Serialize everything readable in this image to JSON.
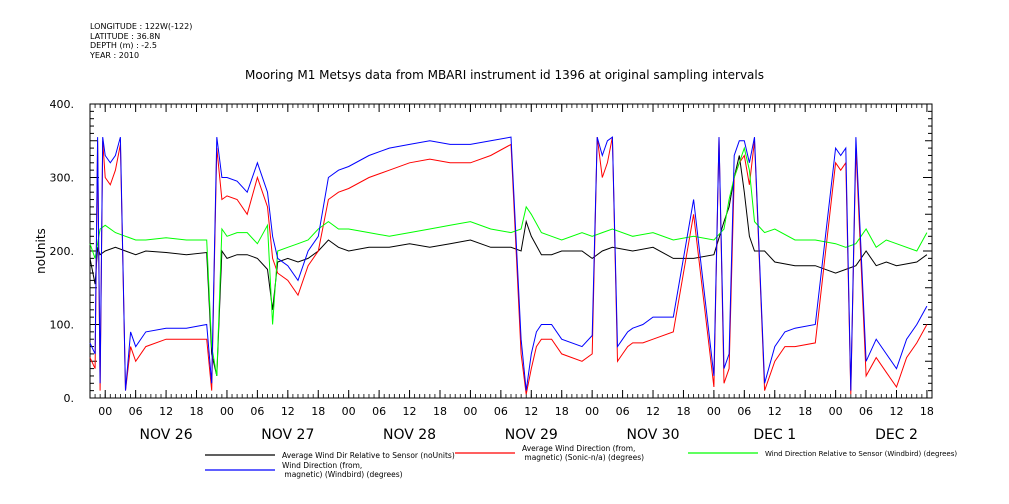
{
  "meta": {
    "longitude": "LONGITUDE : 122W(-122)",
    "latitude": "LATITUDE : 36.8N",
    "depth": "DEPTH (m) : -2.5",
    "year": "YEAR : 2010"
  },
  "chart_data": {
    "type": "line",
    "title": "Mooring M1 Metsys data from MBARI instrument id 1396 at original sampling intervals",
    "ylabel": "noUnits",
    "xlabel": "",
    "ylim": [
      0,
      400
    ],
    "xlim": [
      -3,
      163
    ],
    "y_ticks": [
      "0.",
      "100.",
      "200.",
      "300.",
      "400."
    ],
    "x_tick_hours": [
      0,
      6,
      12,
      18,
      24,
      30,
      36,
      42,
      48,
      54,
      60,
      66,
      72,
      78,
      84,
      90,
      96,
      102,
      108,
      114,
      120,
      126,
      132,
      138,
      144,
      150,
      156,
      162
    ],
    "x_tick_labels": [
      "00",
      "06",
      "12",
      "18",
      "00",
      "06",
      "12",
      "18",
      "00",
      "06",
      "12",
      "18",
      "00",
      "06",
      "12",
      "18",
      "00",
      "06",
      "12",
      "18",
      "00",
      "06",
      "12",
      "18",
      "00",
      "06",
      "12",
      "18"
    ],
    "day_labels": [
      {
        "hour": 12,
        "label": "NOV 26"
      },
      {
        "hour": 36,
        "label": "NOV 27"
      },
      {
        "hour": 60,
        "label": "NOV 28"
      },
      {
        "hour": 84,
        "label": "NOV 29"
      },
      {
        "hour": 108,
        "label": "NOV 30"
      },
      {
        "hour": 132,
        "label": "DEC  1"
      },
      {
        "hour": 156,
        "label": "DEC  2"
      }
    ],
    "grid": false,
    "legend_position": "bottom",
    "series": [
      {
        "name": "Average Wind Dir Relative to Sensor (noUnits)",
        "color": "#000000",
        "x": [
          -3,
          -2,
          -1.5,
          -1,
          0,
          2,
          4,
          6,
          8,
          12,
          16,
          20,
          21,
          22,
          23,
          24,
          26,
          28,
          30,
          32,
          33,
          34,
          36,
          38,
          40,
          42,
          44,
          46,
          48,
          52,
          56,
          60,
          64,
          68,
          72,
          76,
          80,
          82,
          83,
          84,
          86,
          88,
          90,
          94,
          96,
          98,
          100,
          104,
          108,
          112,
          116,
          120,
          122,
          123,
          124,
          125,
          126,
          127,
          128,
          130,
          132,
          136,
          140,
          144,
          146,
          148,
          150,
          152,
          154,
          156,
          160,
          162
        ],
        "y": [
          190,
          155,
          205,
          195,
          200,
          205,
          200,
          195,
          200,
          198,
          195,
          198,
          60,
          30,
          200,
          190,
          195,
          195,
          190,
          175,
          120,
          185,
          190,
          185,
          190,
          200,
          215,
          205,
          200,
          205,
          205,
          210,
          205,
          210,
          215,
          205,
          205,
          200,
          240,
          220,
          195,
          195,
          200,
          200,
          190,
          200,
          205,
          200,
          205,
          190,
          190,
          195,
          240,
          260,
          300,
          330,
          280,
          220,
          200,
          200,
          185,
          180,
          180,
          170,
          175,
          180,
          200,
          180,
          185,
          180,
          185,
          195
        ]
      },
      {
        "name": "Average Wind Direction (from, magnetic) (Sonic-n/a) (degrees)",
        "color": "#ff0000",
        "x": [
          -3,
          -2,
          -1.5,
          -1,
          -0.5,
          0,
          1,
          2,
          3,
          4,
          5,
          6,
          8,
          12,
          16,
          20,
          21,
          22,
          23,
          24,
          26,
          28,
          30,
          32,
          33,
          34,
          36,
          38,
          40,
          42,
          44,
          46,
          48,
          52,
          56,
          60,
          64,
          68,
          72,
          76,
          80,
          82,
          83,
          84,
          85,
          86,
          88,
          90,
          94,
          96,
          97,
          98,
          99,
          100,
          101,
          102,
          103,
          104,
          106,
          108,
          112,
          116,
          120,
          121,
          122,
          123,
          124,
          125,
          126,
          127,
          128,
          130,
          132,
          134,
          136,
          140,
          144,
          145,
          146,
          147,
          148,
          150,
          152,
          154,
          156,
          158,
          160,
          162
        ],
        "y": [
          55,
          40,
          350,
          10,
          350,
          300,
          290,
          310,
          345,
          10,
          70,
          50,
          70,
          80,
          80,
          80,
          10,
          340,
          270,
          275,
          270,
          250,
          300,
          260,
          190,
          170,
          160,
          140,
          180,
          200,
          270,
          280,
          285,
          300,
          310,
          320,
          325,
          320,
          320,
          330,
          345,
          60,
          5,
          40,
          70,
          80,
          80,
          60,
          50,
          60,
          355,
          300,
          320,
          355,
          50,
          60,
          70,
          75,
          75,
          80,
          90,
          250,
          15,
          355,
          20,
          40,
          300,
          320,
          330,
          290,
          350,
          10,
          50,
          70,
          70,
          75,
          320,
          310,
          320,
          5,
          340,
          30,
          55,
          35,
          15,
          55,
          75,
          100
        ]
      },
      {
        "name": "Wind Direction Relative to Sensor (Windbird) (degrees)",
        "color": "#00ff00",
        "x": [
          -3,
          -2,
          -1,
          0,
          2,
          4,
          6,
          8,
          12,
          16,
          20,
          21,
          22,
          23,
          24,
          26,
          28,
          30,
          32,
          33,
          34,
          36,
          38,
          40,
          42,
          44,
          46,
          48,
          52,
          56,
          60,
          64,
          68,
          72,
          76,
          80,
          82,
          83,
          84,
          86,
          88,
          90,
          94,
          96,
          98,
          100,
          104,
          108,
          112,
          116,
          120,
          122,
          123,
          124,
          125,
          126,
          127,
          128,
          130,
          132,
          136,
          140,
          144,
          146,
          148,
          150,
          152,
          154,
          156,
          160,
          162
        ],
        "y": [
          210,
          190,
          230,
          235,
          225,
          220,
          215,
          215,
          218,
          215,
          215,
          70,
          30,
          230,
          220,
          225,
          225,
          210,
          235,
          100,
          200,
          205,
          210,
          215,
          230,
          240,
          230,
          230,
          225,
          220,
          225,
          230,
          235,
          240,
          230,
          225,
          230,
          260,
          250,
          225,
          220,
          215,
          225,
          220,
          225,
          230,
          220,
          225,
          215,
          220,
          215,
          230,
          270,
          300,
          320,
          340,
          310,
          240,
          225,
          230,
          215,
          215,
          210,
          205,
          210,
          230,
          205,
          215,
          210,
          200,
          225
        ]
      },
      {
        "name": "Wind Direction (from, magnetic) (Windbird) (degrees)",
        "color": "#0000ff",
        "x": [
          -3,
          -2,
          -1.5,
          -1,
          -0.5,
          0,
          1,
          2,
          3,
          4,
          5,
          6,
          8,
          12,
          16,
          20,
          21,
          22,
          23,
          24,
          26,
          28,
          30,
          32,
          33,
          34,
          36,
          38,
          40,
          42,
          44,
          46,
          48,
          52,
          56,
          60,
          64,
          68,
          72,
          76,
          80,
          82,
          83,
          84,
          85,
          86,
          88,
          90,
          94,
          96,
          97,
          98,
          99,
          100,
          101,
          102,
          103,
          104,
          106,
          108,
          112,
          116,
          120,
          121,
          122,
          123,
          124,
          125,
          126,
          127,
          128,
          130,
          132,
          134,
          136,
          140,
          144,
          145,
          146,
          147,
          148,
          150,
          152,
          154,
          156,
          158,
          160,
          162
        ],
        "y": [
          75,
          60,
          355,
          20,
          355,
          330,
          320,
          330,
          355,
          10,
          90,
          70,
          90,
          95,
          95,
          100,
          20,
          355,
          300,
          300,
          295,
          280,
          320,
          280,
          220,
          190,
          180,
          160,
          200,
          220,
          300,
          310,
          315,
          330,
          340,
          345,
          350,
          345,
          345,
          350,
          355,
          80,
          10,
          60,
          90,
          100,
          100,
          80,
          70,
          85,
          355,
          330,
          350,
          355,
          70,
          80,
          90,
          95,
          100,
          110,
          110,
          270,
          30,
          355,
          40,
          60,
          330,
          350,
          350,
          320,
          355,
          20,
          70,
          90,
          95,
          100,
          340,
          330,
          340,
          10,
          355,
          50,
          80,
          60,
          40,
          80,
          100,
          125
        ]
      }
    ]
  }
}
